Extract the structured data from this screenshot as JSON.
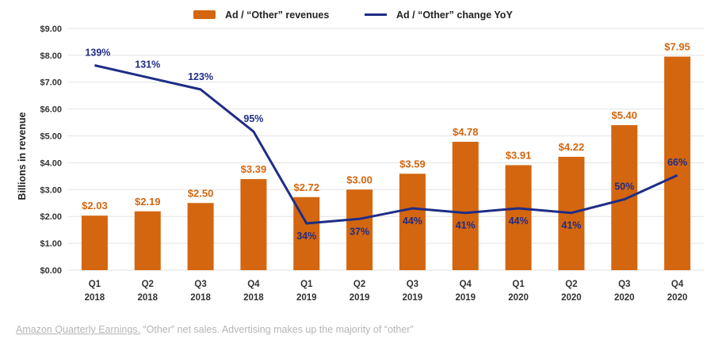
{
  "chart_data": {
    "type": "bar",
    "categories": [
      [
        "Q1",
        "2018"
      ],
      [
        "Q2",
        "2018"
      ],
      [
        "Q3",
        "2018"
      ],
      [
        "Q4",
        "2018"
      ],
      [
        "Q1",
        "2019"
      ],
      [
        "Q2",
        "2019"
      ],
      [
        "Q3",
        "2019"
      ],
      [
        "Q4",
        "2019"
      ],
      [
        "Q1",
        "2020"
      ],
      [
        "Q2",
        "2020"
      ],
      [
        "Q3",
        "2020"
      ],
      [
        "Q4",
        "2020"
      ]
    ],
    "series": [
      {
        "name": "Ad / “Other” revenues",
        "type": "bar",
        "color": "#D4660F",
        "values": [
          2.03,
          2.19,
          2.5,
          3.39,
          2.72,
          3.0,
          3.59,
          4.78,
          3.91,
          4.22,
          5.4,
          7.95
        ],
        "labels": [
          "$2.03",
          "$2.19",
          "$2.50",
          "$3.39",
          "$2.72",
          "$3.00",
          "$3.59",
          "$4.78",
          "$3.91",
          "$4.22",
          "$5.40",
          "$7.95"
        ]
      },
      {
        "name": "Ad / “Other” change YoY",
        "type": "line",
        "color": "#1F2D86",
        "values": [
          139,
          131,
          123,
          95,
          34,
          37,
          44,
          41,
          44,
          41,
          50,
          66
        ],
        "labels": [
          "139%",
          "131%",
          "123%",
          "95%",
          "34%",
          "37%",
          "44%",
          "41%",
          "44%",
          "41%",
          "50%",
          "66%"
        ]
      }
    ],
    "ylabel": "Billions in revenue",
    "xlabel": "",
    "ylim": [
      0,
      9
    ],
    "yticks": [
      "$0.00",
      "$1.00",
      "$2.00",
      "$3.00",
      "$4.00",
      "$5.00",
      "$6.00",
      "$7.00",
      "$8.00",
      "$9.00"
    ],
    "grid": true,
    "legend_position": "top-center"
  },
  "caption": {
    "source_link": "Amazon Quarterly Earnings.",
    "text": " “Other” net sales. Advertising makes up the majority of “other”"
  }
}
